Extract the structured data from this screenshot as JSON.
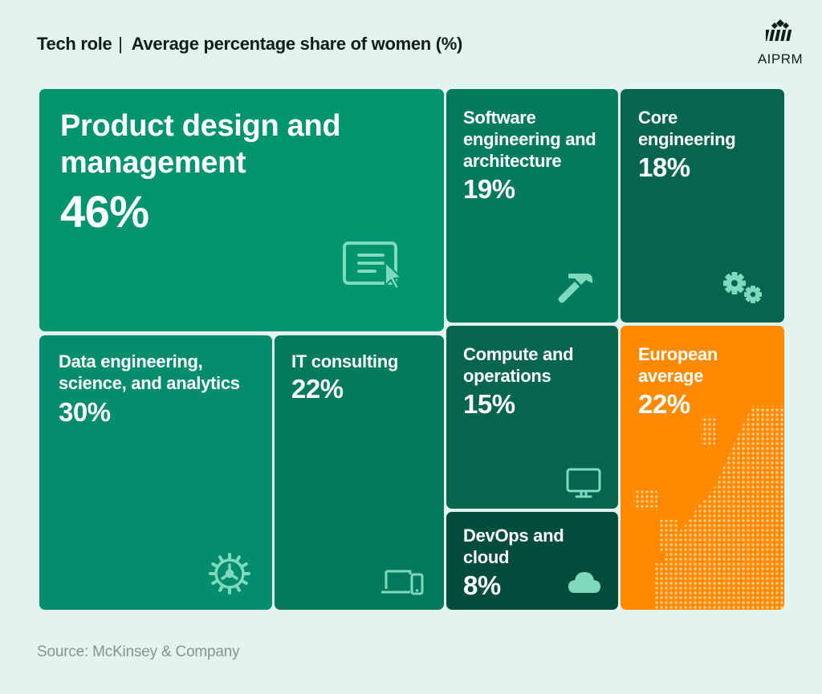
{
  "header": {
    "title_left": "Tech role",
    "title_sep": "|",
    "title_right": "Average percentage share of women (%)"
  },
  "logo": {
    "text": "AIPRM"
  },
  "chart_data": {
    "type": "treemap",
    "title": "Tech role | Average percentage share of women (%)",
    "unit": "%",
    "items": [
      {
        "label": "Product design and management",
        "value": 46,
        "display": "46%",
        "color": "#00946f",
        "icon": "presentation-cursor-icon"
      },
      {
        "label": "Software engineering and architecture",
        "value": 19,
        "display": "19%",
        "color": "#017a5d",
        "icon": "hammer-icon"
      },
      {
        "label": "Core engineering",
        "value": 18,
        "display": "18%",
        "color": "#05654f",
        "icon": "gears-icon"
      },
      {
        "label": "Data engineering, science, and analytics",
        "value": 30,
        "display": "30%",
        "color": "#038d6c",
        "icon": "gear-icon"
      },
      {
        "label": "IT consulting",
        "value": 22,
        "display": "22%",
        "color": "#017a5d",
        "icon": "devices-icon"
      },
      {
        "label": "Compute and operations",
        "value": 15,
        "display": "15%",
        "color": "#05654f",
        "icon": "monitor-icon"
      },
      {
        "label": "DevOps and cloud",
        "value": 8,
        "display": "8%",
        "color": "#024c3c",
        "icon": "cloud-icon"
      },
      {
        "label": "European average",
        "value": 22,
        "display": "22%",
        "color": "#ff8a00",
        "icon": "europe-map-icon"
      }
    ]
  },
  "source": "Source: McKinsey & Company"
}
